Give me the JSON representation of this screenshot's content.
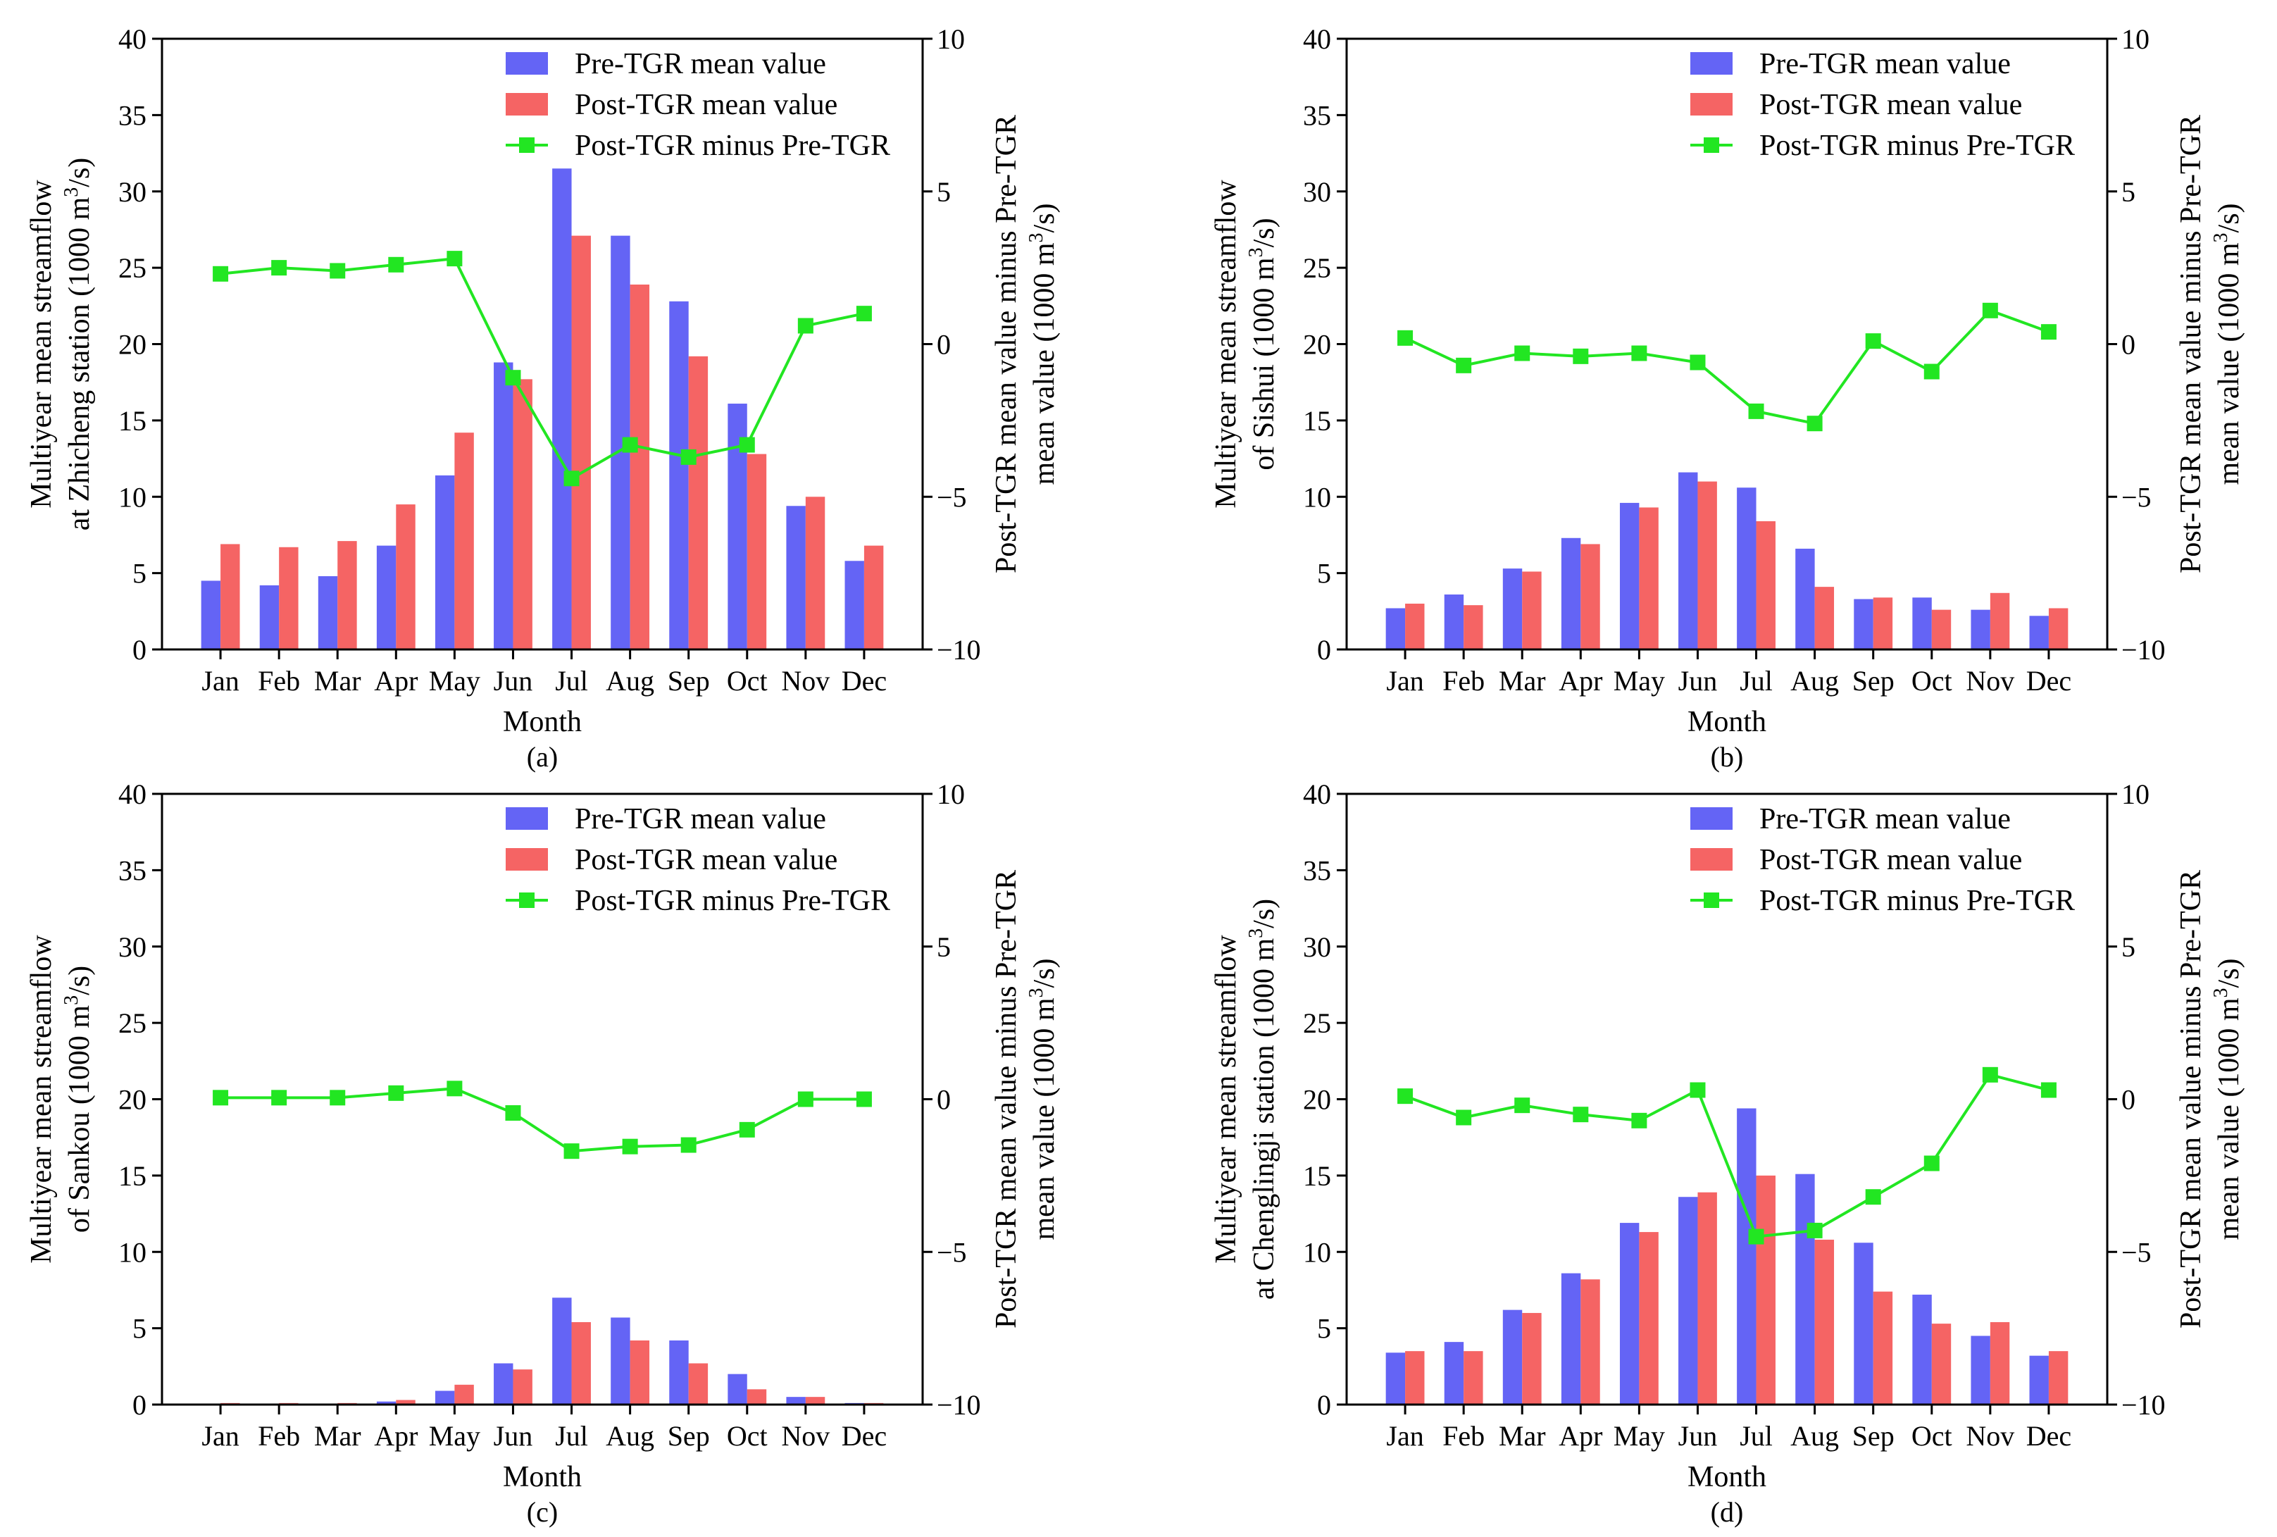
{
  "colors": {
    "pre": "#6464f5",
    "post": "#f56464",
    "diff": "#22e622",
    "axis": "#000000"
  },
  "chart_data": [
    {
      "panel_label": "(a)",
      "type": "bar+line",
      "categories": [
        "Jan",
        "Feb",
        "Mar",
        "Apr",
        "May",
        "Jun",
        "Jul",
        "Aug",
        "Sep",
        "Oct",
        "Nov",
        "Dec"
      ],
      "series": [
        {
          "name": "Pre-TGR mean value",
          "axis": "left",
          "kind": "bar",
          "values": [
            4.5,
            4.2,
            4.8,
            6.8,
            11.4,
            18.8,
            31.5,
            27.1,
            22.8,
            16.1,
            9.4,
            5.8
          ]
        },
        {
          "name": "Post-TGR mean value",
          "axis": "left",
          "kind": "bar",
          "values": [
            6.9,
            6.7,
            7.1,
            9.5,
            14.2,
            17.7,
            27.1,
            23.9,
            19.2,
            12.8,
            10.0,
            6.8
          ]
        },
        {
          "name": "Post-TGR minus Pre-TGR",
          "axis": "right",
          "kind": "line",
          "values": [
            2.3,
            2.5,
            2.4,
            2.6,
            2.8,
            -1.1,
            -4.4,
            -3.3,
            -3.7,
            -3.3,
            0.6,
            1.0
          ]
        }
      ],
      "xlabel": "Month",
      "ylabel_lines": [
        "Multiyear mean streamflow",
        "at Zhicheng station (1000 m",
        "3",
        "/s)"
      ],
      "y2label_lines": [
        "Post-TGR mean value minus Pre-TGR",
        "mean value (1000 m",
        "3",
        "/s)"
      ],
      "ylim": [
        0,
        40
      ],
      "y2lim": [
        -10,
        10
      ],
      "yticks": [
        "0",
        "5",
        "10",
        "15",
        "20",
        "25",
        "30",
        "35",
        "40"
      ],
      "y2ticks": [
        "−10",
        "−5",
        "0",
        "5",
        "10"
      ],
      "legend_position": "top-right"
    },
    {
      "panel_label": "(b)",
      "type": "bar+line",
      "categories": [
        "Jan",
        "Feb",
        "Mar",
        "Apr",
        "May",
        "Jun",
        "Jul",
        "Aug",
        "Sep",
        "Oct",
        "Nov",
        "Dec"
      ],
      "series": [
        {
          "name": "Pre-TGR mean value",
          "axis": "left",
          "kind": "bar",
          "values": [
            2.7,
            3.6,
            5.3,
            7.3,
            9.6,
            11.6,
            10.6,
            6.6,
            3.3,
            3.4,
            2.6,
            2.2
          ]
        },
        {
          "name": "Post-TGR mean value",
          "axis": "left",
          "kind": "bar",
          "values": [
            3.0,
            2.9,
            5.1,
            6.9,
            9.3,
            11.0,
            8.4,
            4.1,
            3.4,
            2.6,
            3.7,
            2.7
          ]
        },
        {
          "name": "Post-TGR minus Pre-TGR",
          "axis": "right",
          "kind": "line",
          "values": [
            0.2,
            -0.7,
            -0.3,
            -0.4,
            -0.3,
            -0.6,
            -2.2,
            -2.6,
            0.1,
            -0.9,
            1.1,
            0.4
          ]
        }
      ],
      "xlabel": "Month",
      "ylabel_lines": [
        "Multiyear mean streamflow",
        "of Sishui (1000 m",
        "3",
        "/s)"
      ],
      "y2label_lines": [
        "Post-TGR mean value minus Pre-TGR",
        "mean value (1000 m",
        "3",
        "/s)"
      ],
      "ylim": [
        0,
        40
      ],
      "y2lim": [
        -10,
        10
      ],
      "yticks": [
        "0",
        "5",
        "10",
        "15",
        "20",
        "25",
        "30",
        "35",
        "40"
      ],
      "y2ticks": [
        "−10",
        "−5",
        "0",
        "5",
        "10"
      ],
      "legend_position": "top-right"
    },
    {
      "panel_label": "(c)",
      "type": "bar+line",
      "categories": [
        "Jan",
        "Feb",
        "Mar",
        "Apr",
        "May",
        "Jun",
        "Jul",
        "Aug",
        "Sep",
        "Oct",
        "Nov",
        "Dec"
      ],
      "series": [
        {
          "name": "Pre-TGR mean value",
          "axis": "left",
          "kind": "bar",
          "values": [
            0.0,
            0.05,
            0.05,
            0.2,
            0.9,
            2.7,
            7.0,
            5.7,
            4.2,
            2.0,
            0.5,
            0.1
          ]
        },
        {
          "name": "Post-TGR mean value",
          "axis": "left",
          "kind": "bar",
          "values": [
            0.1,
            0.1,
            0.1,
            0.3,
            1.3,
            2.3,
            5.4,
            4.2,
            2.7,
            1.0,
            0.5,
            0.1
          ]
        },
        {
          "name": "Post-TGR minus Pre-TGR",
          "axis": "right",
          "kind": "line",
          "values": [
            0.05,
            0.05,
            0.05,
            0.2,
            0.35,
            -0.45,
            -1.7,
            -1.55,
            -1.5,
            -1.0,
            0.0,
            0.0
          ]
        }
      ],
      "xlabel": "Month",
      "ylabel_lines": [
        "Multiyear mean streamflow",
        "of Sankou (1000 m",
        "3",
        "/s)"
      ],
      "y2label_lines": [
        "Post-TGR mean value minus Pre-TGR",
        "mean value (1000 m",
        "3",
        "/s)"
      ],
      "ylim": [
        0,
        40
      ],
      "y2lim": [
        -10,
        10
      ],
      "yticks": [
        "0",
        "5",
        "10",
        "15",
        "20",
        "25",
        "30",
        "35",
        "40"
      ],
      "y2ticks": [
        "−10",
        "−5",
        "0",
        "5",
        "10"
      ],
      "legend_position": "top-right"
    },
    {
      "panel_label": "(d)",
      "type": "bar+line",
      "categories": [
        "Jan",
        "Feb",
        "Mar",
        "Apr",
        "May",
        "Jun",
        "Jul",
        "Aug",
        "Sep",
        "Oct",
        "Nov",
        "Dec"
      ],
      "series": [
        {
          "name": "Pre-TGR mean value",
          "axis": "left",
          "kind": "bar",
          "values": [
            3.4,
            4.1,
            6.2,
            8.6,
            11.9,
            13.6,
            19.4,
            15.1,
            10.6,
            7.2,
            4.5,
            3.2
          ]
        },
        {
          "name": "Post-TGR mean value",
          "axis": "left",
          "kind": "bar",
          "values": [
            3.5,
            3.5,
            6.0,
            8.2,
            11.3,
            13.9,
            15.0,
            10.8,
            7.4,
            5.3,
            5.4,
            3.5
          ]
        },
        {
          "name": "Post-TGR minus Pre-TGR",
          "axis": "right",
          "kind": "line",
          "values": [
            0.1,
            -0.6,
            -0.2,
            -0.5,
            -0.7,
            0.3,
            -4.5,
            -4.3,
            -3.2,
            -2.1,
            0.8,
            0.3
          ]
        }
      ],
      "xlabel": "Month",
      "ylabel_lines": [
        "Multiyear mean streamflow",
        "at Chenglingji station (1000 m",
        "3",
        "/s)"
      ],
      "y2label_lines": [
        "Post-TGR mean value minus Pre-TGR",
        "mean value (1000 m",
        "3",
        "/s)"
      ],
      "ylim": [
        0,
        40
      ],
      "y2lim": [
        -10,
        10
      ],
      "yticks": [
        "0",
        "5",
        "10",
        "15",
        "20",
        "25",
        "30",
        "35",
        "40"
      ],
      "y2ticks": [
        "−10",
        "−5",
        "0",
        "5",
        "10"
      ],
      "legend_position": "top-right"
    }
  ]
}
